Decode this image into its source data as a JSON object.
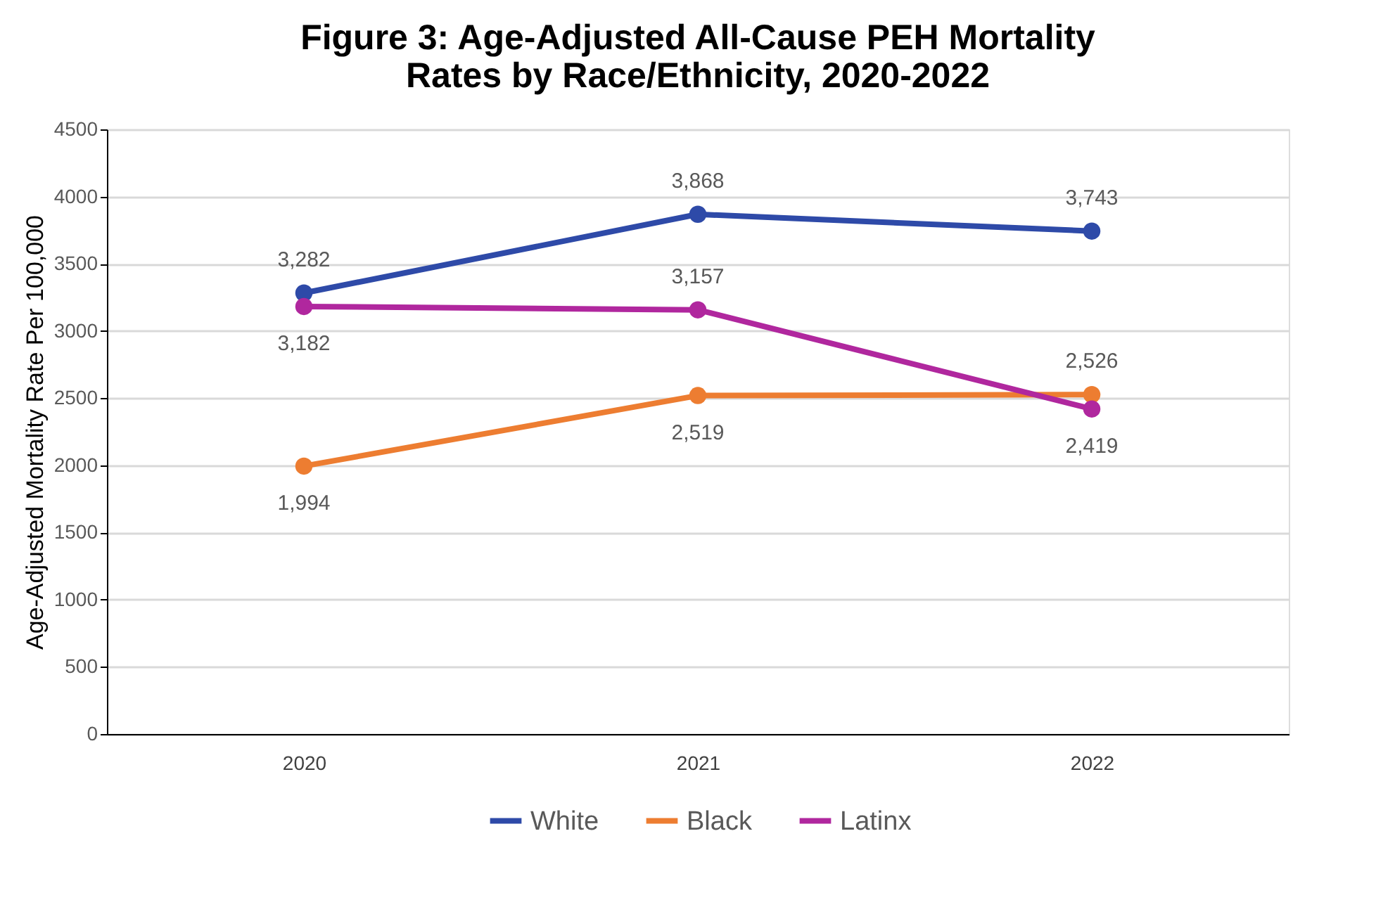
{
  "chart_data": {
    "type": "line",
    "title": [
      "Figure 3: Age-Adjusted All-Cause PEH Mortality",
      "Rates by Race/Ethnicity, 2020-2022"
    ],
    "ylabel": "Age-Adjusted Mortality Rate Per 100,000",
    "categories": [
      "2020",
      "2021",
      "2022"
    ],
    "series": [
      {
        "name": "White",
        "color": "#2e4aa8",
        "values": [
          3282,
          3868,
          3743
        ],
        "value_labels": [
          "3,282",
          "3,868",
          "3,743"
        ]
      },
      {
        "name": "Black",
        "color": "#ed7d31",
        "values": [
          1994,
          2519,
          2526
        ],
        "value_labels": [
          "1,994",
          "2,519",
          "2,526"
        ]
      },
      {
        "name": "Latinx",
        "color": "#b0279e",
        "values": [
          3182,
          3157,
          2419
        ],
        "value_labels": [
          "3,182",
          "3,157",
          "2,419"
        ]
      }
    ],
    "ylim": [
      0,
      4500
    ],
    "yticks": [
      0,
      500,
      1000,
      1500,
      2000,
      2500,
      3000,
      3500,
      4000,
      4500
    ],
    "grid": "y",
    "legend": "bottom",
    "marker": "circle",
    "line_style": "solid"
  }
}
